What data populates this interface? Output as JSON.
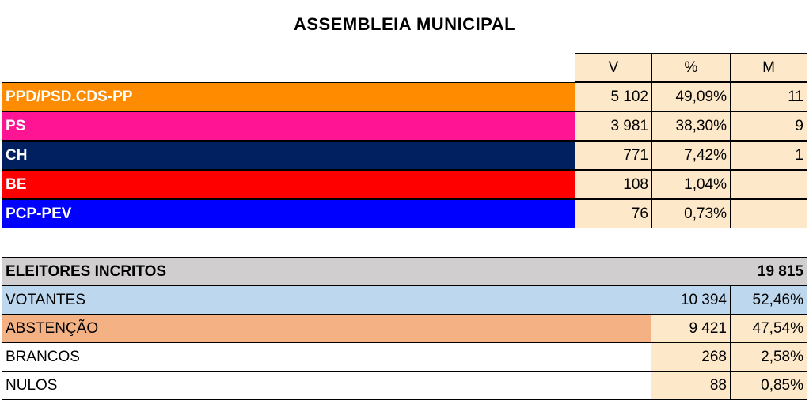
{
  "title": "ASSEMBLEIA MUNICIPAL",
  "results": {
    "columns": [
      "V",
      "%",
      "M"
    ],
    "rows": [
      {
        "party": "PPD/PSD.CDS-PP",
        "color": "#ff8c00",
        "cells": [
          "5 102",
          "49,09%",
          "11"
        ]
      },
      {
        "party": "PS",
        "color": "#ff1493",
        "cells": [
          "3 981",
          "38,30%",
          "9"
        ]
      },
      {
        "party": "CH",
        "color": "#002060",
        "cells": [
          "771",
          "7,42%",
          "1"
        ]
      },
      {
        "party": "BE",
        "color": "#ff0000",
        "cells": [
          "108",
          "1,04%"
        ]
      },
      {
        "party": "PCP-PEV",
        "color": "#0000ff",
        "cells": [
          "76",
          "0,73%"
        ]
      }
    ]
  },
  "summary": {
    "total": {
      "label": "ELEITORES INCRITOS",
      "value": "19 815",
      "color": "#d0cece"
    },
    "rows": [
      {
        "label": "VOTANTES",
        "color": "#bdd7ee",
        "cells": [
          "10 394",
          "52,46%"
        ]
      },
      {
        "label": "ABSTENÇÃO",
        "color": "#f4b183",
        "cells": [
          "9 421",
          "47,54%"
        ]
      },
      {
        "label": "BRANCOS",
        "color": "#ffffff",
        "cells": [
          "268",
          "2,58%"
        ]
      },
      {
        "label": "NULOS",
        "color": "#ffffff",
        "cells": [
          "88",
          "0,85%"
        ]
      }
    ]
  }
}
